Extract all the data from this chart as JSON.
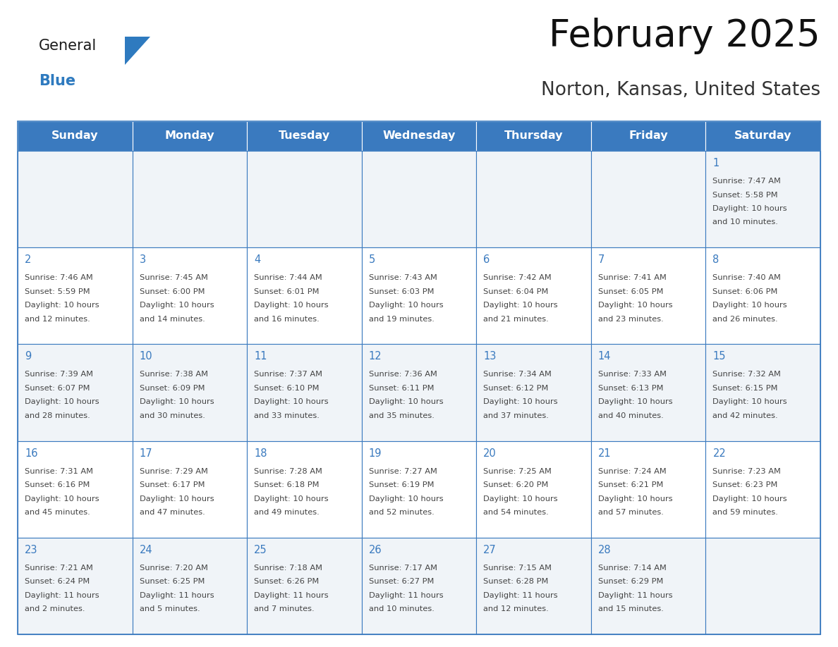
{
  "title": "February 2025",
  "subtitle": "Norton, Kansas, United States",
  "header_bg": "#3a7abf",
  "header_text_color": "#ffffff",
  "day_names": [
    "Sunday",
    "Monday",
    "Tuesday",
    "Wednesday",
    "Thursday",
    "Friday",
    "Saturday"
  ],
  "row_odd_bg": "#f0f4f8",
  "row_even_bg": "#ffffff",
  "cell_border_color": "#3a7abf",
  "date_color": "#3a7abf",
  "text_color": "#444444",
  "logo_general_color": "#1a1a1a",
  "logo_blue_color": "#2e7abf",
  "calendar": [
    [
      {
        "day": null,
        "sunrise": null,
        "sunset": null,
        "daylight": null
      },
      {
        "day": null,
        "sunrise": null,
        "sunset": null,
        "daylight": null
      },
      {
        "day": null,
        "sunrise": null,
        "sunset": null,
        "daylight": null
      },
      {
        "day": null,
        "sunrise": null,
        "sunset": null,
        "daylight": null
      },
      {
        "day": null,
        "sunrise": null,
        "sunset": null,
        "daylight": null
      },
      {
        "day": null,
        "sunrise": null,
        "sunset": null,
        "daylight": null
      },
      {
        "day": 1,
        "sunrise": "7:47 AM",
        "sunset": "5:58 PM",
        "daylight_line1": "Daylight: 10 hours",
        "daylight_line2": "and 10 minutes."
      }
    ],
    [
      {
        "day": 2,
        "sunrise": "7:46 AM",
        "sunset": "5:59 PM",
        "daylight_line1": "Daylight: 10 hours",
        "daylight_line2": "and 12 minutes."
      },
      {
        "day": 3,
        "sunrise": "7:45 AM",
        "sunset": "6:00 PM",
        "daylight_line1": "Daylight: 10 hours",
        "daylight_line2": "and 14 minutes."
      },
      {
        "day": 4,
        "sunrise": "7:44 AM",
        "sunset": "6:01 PM",
        "daylight_line1": "Daylight: 10 hours",
        "daylight_line2": "and 16 minutes."
      },
      {
        "day": 5,
        "sunrise": "7:43 AM",
        "sunset": "6:03 PM",
        "daylight_line1": "Daylight: 10 hours",
        "daylight_line2": "and 19 minutes."
      },
      {
        "day": 6,
        "sunrise": "7:42 AM",
        "sunset": "6:04 PM",
        "daylight_line1": "Daylight: 10 hours",
        "daylight_line2": "and 21 minutes."
      },
      {
        "day": 7,
        "sunrise": "7:41 AM",
        "sunset": "6:05 PM",
        "daylight_line1": "Daylight: 10 hours",
        "daylight_line2": "and 23 minutes."
      },
      {
        "day": 8,
        "sunrise": "7:40 AM",
        "sunset": "6:06 PM",
        "daylight_line1": "Daylight: 10 hours",
        "daylight_line2": "and 26 minutes."
      }
    ],
    [
      {
        "day": 9,
        "sunrise": "7:39 AM",
        "sunset": "6:07 PM",
        "daylight_line1": "Daylight: 10 hours",
        "daylight_line2": "and 28 minutes."
      },
      {
        "day": 10,
        "sunrise": "7:38 AM",
        "sunset": "6:09 PM",
        "daylight_line1": "Daylight: 10 hours",
        "daylight_line2": "and 30 minutes."
      },
      {
        "day": 11,
        "sunrise": "7:37 AM",
        "sunset": "6:10 PM",
        "daylight_line1": "Daylight: 10 hours",
        "daylight_line2": "and 33 minutes."
      },
      {
        "day": 12,
        "sunrise": "7:36 AM",
        "sunset": "6:11 PM",
        "daylight_line1": "Daylight: 10 hours",
        "daylight_line2": "and 35 minutes."
      },
      {
        "day": 13,
        "sunrise": "7:34 AM",
        "sunset": "6:12 PM",
        "daylight_line1": "Daylight: 10 hours",
        "daylight_line2": "and 37 minutes."
      },
      {
        "day": 14,
        "sunrise": "7:33 AM",
        "sunset": "6:13 PM",
        "daylight_line1": "Daylight: 10 hours",
        "daylight_line2": "and 40 minutes."
      },
      {
        "day": 15,
        "sunrise": "7:32 AM",
        "sunset": "6:15 PM",
        "daylight_line1": "Daylight: 10 hours",
        "daylight_line2": "and 42 minutes."
      }
    ],
    [
      {
        "day": 16,
        "sunrise": "7:31 AM",
        "sunset": "6:16 PM",
        "daylight_line1": "Daylight: 10 hours",
        "daylight_line2": "and 45 minutes."
      },
      {
        "day": 17,
        "sunrise": "7:29 AM",
        "sunset": "6:17 PM",
        "daylight_line1": "Daylight: 10 hours",
        "daylight_line2": "and 47 minutes."
      },
      {
        "day": 18,
        "sunrise": "7:28 AM",
        "sunset": "6:18 PM",
        "daylight_line1": "Daylight: 10 hours",
        "daylight_line2": "and 49 minutes."
      },
      {
        "day": 19,
        "sunrise": "7:27 AM",
        "sunset": "6:19 PM",
        "daylight_line1": "Daylight: 10 hours",
        "daylight_line2": "and 52 minutes."
      },
      {
        "day": 20,
        "sunrise": "7:25 AM",
        "sunset": "6:20 PM",
        "daylight_line1": "Daylight: 10 hours",
        "daylight_line2": "and 54 minutes."
      },
      {
        "day": 21,
        "sunrise": "7:24 AM",
        "sunset": "6:21 PM",
        "daylight_line1": "Daylight: 10 hours",
        "daylight_line2": "and 57 minutes."
      },
      {
        "day": 22,
        "sunrise": "7:23 AM",
        "sunset": "6:23 PM",
        "daylight_line1": "Daylight: 10 hours",
        "daylight_line2": "and 59 minutes."
      }
    ],
    [
      {
        "day": 23,
        "sunrise": "7:21 AM",
        "sunset": "6:24 PM",
        "daylight_line1": "Daylight: 11 hours",
        "daylight_line2": "and 2 minutes."
      },
      {
        "day": 24,
        "sunrise": "7:20 AM",
        "sunset": "6:25 PM",
        "daylight_line1": "Daylight: 11 hours",
        "daylight_line2": "and 5 minutes."
      },
      {
        "day": 25,
        "sunrise": "7:18 AM",
        "sunset": "6:26 PM",
        "daylight_line1": "Daylight: 11 hours",
        "daylight_line2": "and 7 minutes."
      },
      {
        "day": 26,
        "sunrise": "7:17 AM",
        "sunset": "6:27 PM",
        "daylight_line1": "Daylight: 11 hours",
        "daylight_line2": "and 10 minutes."
      },
      {
        "day": 27,
        "sunrise": "7:15 AM",
        "sunset": "6:28 PM",
        "daylight_line1": "Daylight: 11 hours",
        "daylight_line2": "and 12 minutes."
      },
      {
        "day": 28,
        "sunrise": "7:14 AM",
        "sunset": "6:29 PM",
        "daylight_line1": "Daylight: 11 hours",
        "daylight_line2": "and 15 minutes."
      },
      {
        "day": null,
        "sunrise": null,
        "sunset": null,
        "daylight_line1": null,
        "daylight_line2": null
      }
    ]
  ]
}
